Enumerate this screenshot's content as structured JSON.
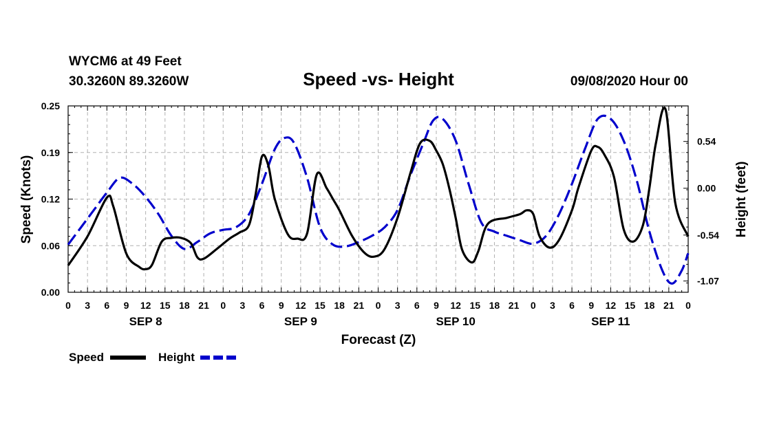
{
  "header": {
    "station": "WYCM6 at 49 Feet",
    "coords": "30.3260N 89.3260W",
    "title": "Speed -vs- Height",
    "datetime": "09/08/2020 Hour 00"
  },
  "legend": {
    "speed": "Speed",
    "height": "Height"
  },
  "colors": {
    "speed": "#000000",
    "height": "#0000cc",
    "grid": "#b0b0b0"
  },
  "chart_data": {
    "type": "line",
    "title": "Speed -vs- Height",
    "xlabel": "Forecast (Z)",
    "ylabel": "Speed (Knots)",
    "y2label": "Height (feet)",
    "xlim": [
      0,
      96
    ],
    "ylim": [
      0,
      0.25
    ],
    "y2lim": [
      -1.2,
      0.95
    ],
    "grid": true,
    "legend_position": "bottom-left",
    "x_tick_labels": [
      "0",
      "3",
      "6",
      "9",
      "12",
      "15",
      "18",
      "21",
      "0",
      "3",
      "6",
      "9",
      "12",
      "15",
      "18",
      "21",
      "0",
      "3",
      "6",
      "9",
      "12",
      "15",
      "18",
      "21",
      "0",
      "3",
      "6",
      "9",
      "12",
      "15",
      "18",
      "21",
      "0"
    ],
    "day_labels": [
      "SEP 8",
      "SEP 9",
      "SEP 10",
      "SEP 11"
    ],
    "y_ticks": [
      "0.00",
      "0.06",
      "0.12",
      "0.19",
      "0.25"
    ],
    "y_tick_values": [
      0,
      0.0625,
      0.125,
      0.1875,
      0.25
    ],
    "y2_ticks": [
      "0.54",
      "0.00",
      "-0.54",
      "-1.07"
    ],
    "y2_tick_values": [
      0.54,
      0.0,
      -0.54,
      -1.07
    ],
    "series": [
      {
        "name": "Speed",
        "axis": "left",
        "style": "solid",
        "x": [
          0,
          3,
          6,
          7,
          9,
          11,
          12,
          13,
          14.5,
          16,
          17.5,
          19,
          20,
          21,
          23,
          25,
          26.5,
          28,
          29,
          30,
          31,
          32,
          34,
          35.5,
          37,
          38.5,
          40,
          41,
          42,
          44,
          46,
          47.5,
          49,
          51,
          53,
          54.5,
          56,
          57,
          58,
          59,
          60,
          61,
          62.5,
          63.5,
          65,
          68,
          70,
          71,
          72,
          73,
          74.5,
          76,
          78,
          79,
          81,
          82,
          83,
          84.5,
          86,
          87.5,
          89,
          90,
          91,
          92.5,
          94,
          96
        ],
        "values": [
          0.036,
          0.075,
          0.127,
          0.115,
          0.052,
          0.034,
          0.031,
          0.037,
          0.068,
          0.073,
          0.073,
          0.066,
          0.047,
          0.045,
          0.058,
          0.072,
          0.08,
          0.09,
          0.13,
          0.182,
          0.17,
          0.125,
          0.078,
          0.072,
          0.079,
          0.158,
          0.14,
          0.125,
          0.11,
          0.075,
          0.052,
          0.048,
          0.058,
          0.1,
          0.16,
          0.2,
          0.203,
          0.19,
          0.172,
          0.14,
          0.1,
          0.057,
          0.04,
          0.055,
          0.092,
          0.1,
          0.105,
          0.11,
          0.105,
          0.075,
          0.06,
          0.07,
          0.11,
          0.14,
          0.19,
          0.195,
          0.185,
          0.155,
          0.085,
          0.068,
          0.09,
          0.14,
          0.2,
          0.245,
          0.12,
          0.075
        ]
      },
      {
        "name": "Height",
        "axis": "right",
        "style": "dashed",
        "x": [
          0,
          2,
          4,
          6,
          8,
          10,
          12,
          14,
          16,
          18,
          20,
          22,
          24,
          26,
          28,
          30,
          32,
          33.5,
          35,
          37,
          39,
          41,
          43,
          45,
          47,
          49,
          51,
          53,
          55,
          56.5,
          58,
          60,
          62,
          64,
          66,
          68,
          70,
          72,
          74,
          76,
          78,
          80,
          82,
          84,
          86,
          88,
          90,
          92,
          93.5,
          95,
          96
        ],
        "values": [
          -0.65,
          -0.45,
          -0.25,
          -0.05,
          0.12,
          0.05,
          -0.1,
          -0.3,
          -0.55,
          -0.7,
          -0.62,
          -0.52,
          -0.48,
          -0.45,
          -0.3,
          0.05,
          0.45,
          0.58,
          0.52,
          0.12,
          -0.45,
          -0.65,
          -0.67,
          -0.62,
          -0.55,
          -0.45,
          -0.25,
          0.15,
          0.52,
          0.78,
          0.8,
          0.55,
          0.05,
          -0.4,
          -0.5,
          -0.55,
          -0.6,
          -0.64,
          -0.55,
          -0.3,
          0.05,
          0.45,
          0.8,
          0.8,
          0.55,
          0.1,
          -0.5,
          -0.95,
          -1.1,
          -0.95,
          -0.75
        ]
      }
    ]
  }
}
